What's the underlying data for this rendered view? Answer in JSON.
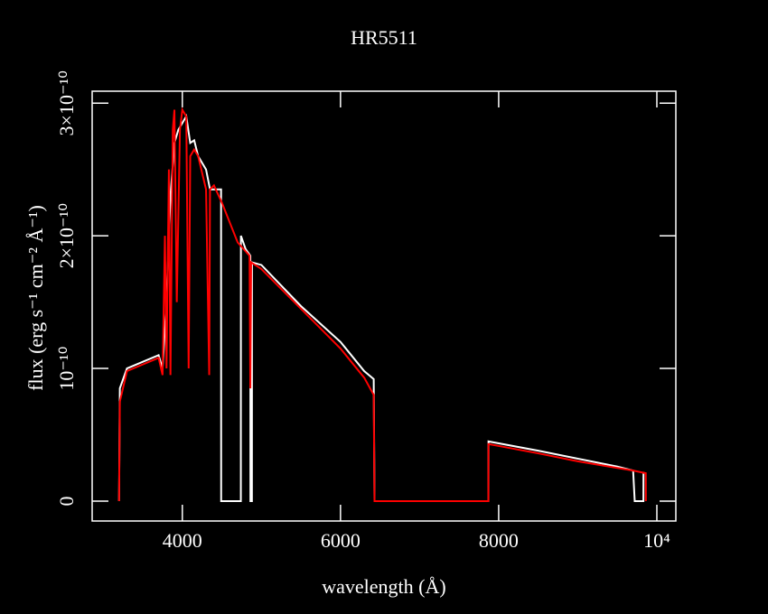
{
  "chart_data": {
    "type": "line",
    "title": "HR5511",
    "xlabel": "wavelength (Å)",
    "ylabel": "flux (erg s⁻¹ cm⁻² Å⁻¹)",
    "xlim": [
      2860,
      10240
    ],
    "ylim": [
      -1.5e-11,
      3.09e-10
    ],
    "xticks": [
      4000,
      6000,
      8000,
      {
        "value": 10000,
        "label": "10⁴"
      }
    ],
    "yticks": [
      0,
      {
        "value": 1e-10,
        "label": "10⁻¹⁰"
      },
      {
        "value": 2e-10,
        "label": "2×10⁻¹⁰"
      },
      {
        "value": 3e-10,
        "label": "3×10⁻¹⁰"
      }
    ],
    "series": [
      {
        "color": "#ffffff",
        "x": [
          3200,
          3210,
          3300,
          3500,
          3700,
          3750,
          3800,
          3850,
          3900,
          3950,
          4000,
          4050,
          4100,
          4150,
          4200,
          4300,
          4350,
          4400,
          4490,
          4491,
          4740,
          4741,
          4800,
          4860,
          4861,
          4880,
          4881,
          5000,
          5500,
          6000,
          6300,
          6420,
          6430,
          7870,
          7871,
          8500,
          9000,
          9500,
          9700,
          9720,
          9830,
          9831
        ],
        "values": [
          0,
          8.5e-11,
          1e-10,
          1.05e-10,
          1.1e-10,
          1e-10,
          1.5e-10,
          2.3e-10,
          2.7e-10,
          2.8e-10,
          2.85e-10,
          2.9e-10,
          2.7e-10,
          2.72e-10,
          2.6e-10,
          2.5e-10,
          2.35e-10,
          2.35e-10,
          2.35e-10,
          0,
          0,
          2e-10,
          1.9e-10,
          1.85e-10,
          0,
          0,
          1.8e-10,
          1.78e-10,
          1.47e-10,
          1.2e-10,
          9.8e-11,
          9.2e-11,
          0,
          0,
          4.5e-11,
          3.8e-11,
          3.2e-11,
          2.6e-11,
          2.3e-11,
          0,
          0,
          2.2e-11
        ]
      },
      {
        "color": "#ff0000",
        "x": [
          3200,
          3210,
          3300,
          3500,
          3700,
          3750,
          3780,
          3800,
          3830,
          3850,
          3880,
          3900,
          3930,
          3970,
          4000,
          4050,
          4080,
          4100,
          4150,
          4200,
          4300,
          4340,
          4350,
          4400,
          4500,
          4700,
          4850,
          4860,
          4870,
          5000,
          5500,
          6000,
          6300,
          6420,
          6430,
          7870,
          7871,
          8500,
          9000,
          9500,
          9700,
          9860,
          9861
        ],
        "values": [
          0,
          7.5e-11,
          9.8e-11,
          1.03e-10,
          1.08e-10,
          9.5e-11,
          2e-10,
          1e-10,
          2.5e-10,
          9.5e-11,
          2.8e-10,
          2.95e-10,
          1.5e-10,
          2.8e-10,
          2.95e-10,
          2.9e-10,
          1e-10,
          2.6e-10,
          2.65e-10,
          2.6e-10,
          2.35e-10,
          9.5e-11,
          2.35e-10,
          2.38e-10,
          2.25e-10,
          1.95e-10,
          1.85e-10,
          8.5e-11,
          1.8e-10,
          1.75e-10,
          1.45e-10,
          1.15e-10,
          9.3e-11,
          8e-11,
          0,
          0,
          4.3e-11,
          3.6e-11,
          3e-11,
          2.5e-11,
          2.3e-11,
          2.1e-11,
          0
        ]
      }
    ]
  }
}
